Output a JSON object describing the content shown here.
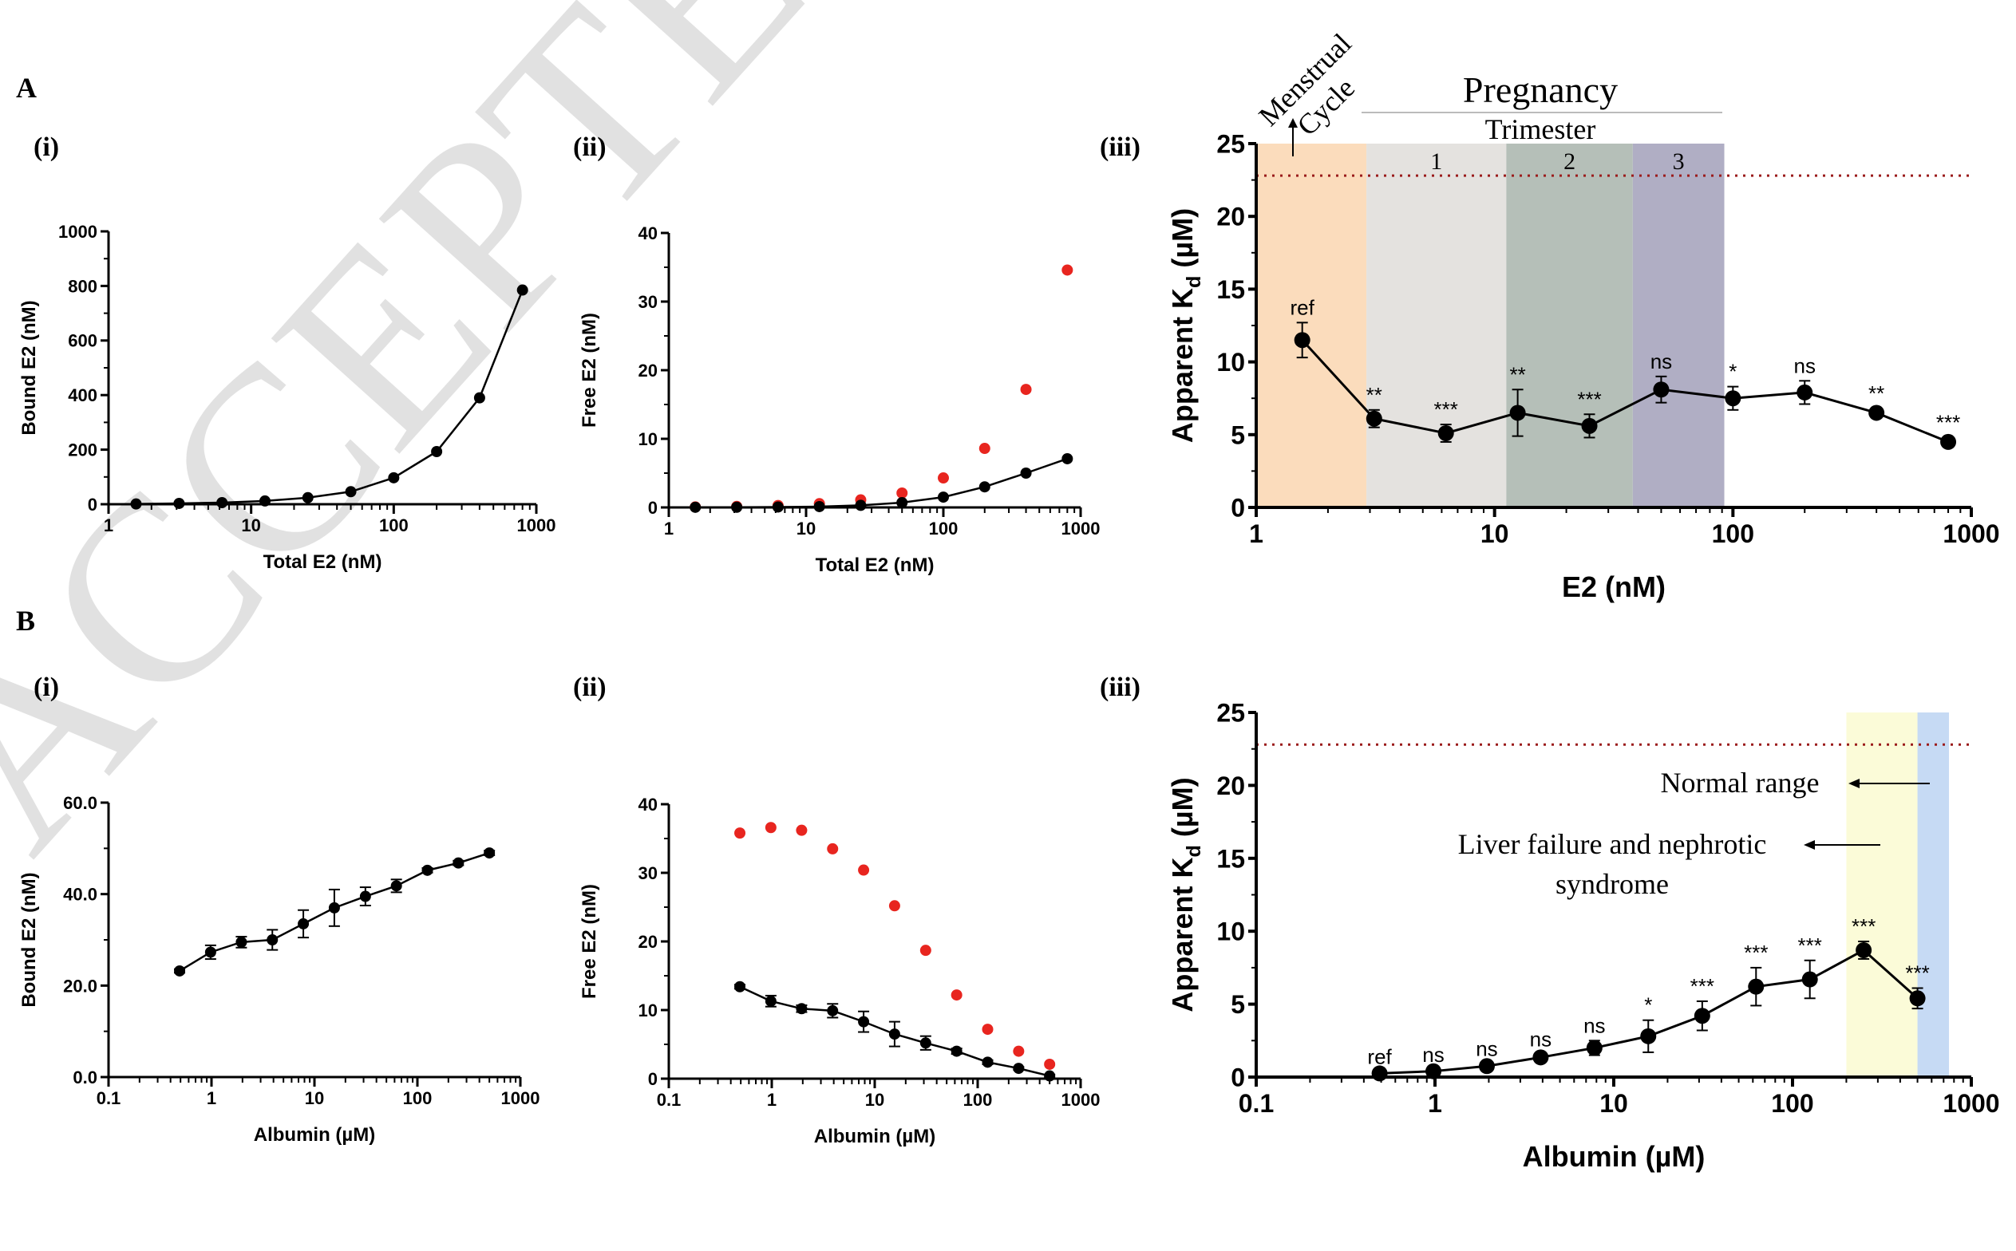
{
  "watermark": "ACCEPTED",
  "panel_labels": {
    "A": "A",
    "B": "B",
    "Ai": "(i)",
    "Aii": "(ii)",
    "Aiii": "(iii)",
    "Bi": "(i)",
    "Bii": "(ii)",
    "Biii": "(iii)"
  },
  "colors": {
    "black": "#000000",
    "red": "#e8251f",
    "ref_line": "#9b1c1c",
    "menstrual": "#fbdcbc",
    "trimester1": "#e4e2df",
    "trimester2": "#b5bfb8",
    "trimester3": "#b0aec4",
    "normal_range": "#fbfbd8",
    "liver_failure": "#c6daf4"
  },
  "chart_data": [
    {
      "id": "Ai",
      "type": "line",
      "xscale": "log",
      "xlim": [
        1,
        1000
      ],
      "ylim": [
        0,
        1000
      ],
      "xticks": [
        1,
        10,
        100,
        1000
      ],
      "xtick_labels": [
        "1",
        "10",
        "100",
        "1000"
      ],
      "yticks": [
        0,
        200,
        400,
        600,
        800,
        1000
      ],
      "ytick_labels": [
        "0",
        "200",
        "400",
        "600",
        "800",
        "1000"
      ],
      "xlabel": "Total E2 (nM)",
      "ylabel": "Bound E2 (nM)",
      "series": [
        {
          "name": "Bound E2",
          "color": "black",
          "marker": "circle",
          "line": true,
          "x": [
            1.56,
            3.125,
            6.25,
            12.5,
            25,
            50,
            100,
            200,
            400,
            800
          ],
          "y": [
            1,
            3,
            6,
            12,
            24,
            46,
            97,
            193,
            390,
            785
          ]
        }
      ]
    },
    {
      "id": "Aii",
      "type": "scatter",
      "xscale": "log",
      "xlim": [
        1,
        1000
      ],
      "ylim": [
        0,
        40
      ],
      "xticks": [
        1,
        10,
        100,
        1000
      ],
      "xtick_labels": [
        "1",
        "10",
        "100",
        "1000"
      ],
      "yticks": [
        0,
        10,
        20,
        30,
        40
      ],
      "ytick_labels": [
        "0",
        "10",
        "20",
        "30",
        "40"
      ],
      "xlabel": "Total E2 (nM)",
      "ylabel": "Free E2 (nM)",
      "series": [
        {
          "name": "Free E2 (red)",
          "color": "red",
          "marker": "circle",
          "line": false,
          "x": [
            1.56,
            3.125,
            6.25,
            12.5,
            25,
            50,
            100,
            200,
            400,
            800
          ],
          "y": [
            0.07,
            0.14,
            0.28,
            0.55,
            1.1,
            2.1,
            4.3,
            8.6,
            17.2,
            34.6
          ]
        },
        {
          "name": "Free E2 (black)",
          "color": "black",
          "marker": "circle",
          "line": true,
          "x": [
            1.56,
            3.125,
            6.25,
            12.5,
            25,
            50,
            100,
            200,
            400,
            800
          ],
          "y": [
            0.02,
            0.03,
            0.06,
            0.12,
            0.3,
            0.7,
            1.5,
            3.0,
            5.0,
            7.1
          ]
        }
      ]
    },
    {
      "id": "Aiii",
      "type": "line",
      "xscale": "log",
      "xlim": [
        1,
        1000
      ],
      "ylim": [
        0,
        25
      ],
      "xticks": [
        1,
        10,
        100,
        1000
      ],
      "xtick_labels": [
        "1",
        "10",
        "100",
        "1000"
      ],
      "yticks": [
        0,
        5,
        10,
        15,
        20,
        25
      ],
      "ytick_labels": [
        "0",
        "5",
        "10",
        "15",
        "20",
        "25"
      ],
      "xlabel": "E2 (nM)",
      "ylabel": "Apparent K",
      "ylabel_sub": "d",
      "ylabel_unit": " (µM)",
      "reference_line": 22.8,
      "header": {
        "pregnancy": "Pregnancy",
        "trimester": "Trimester",
        "menstrual_1": "Menstrual",
        "menstrual_2": "Cycle"
      },
      "regions": [
        {
          "from": 1,
          "to": 2.9,
          "color": "menstrual",
          "label": ""
        },
        {
          "from": 2.9,
          "to": 11.2,
          "color": "trimester1",
          "label": "1"
        },
        {
          "from": 11.2,
          "to": 38,
          "color": "trimester2",
          "label": "2"
        },
        {
          "from": 38,
          "to": 92,
          "color": "trimester3",
          "label": "3"
        }
      ],
      "series": [
        {
          "name": "Apparent Kd",
          "color": "black",
          "marker": "circle",
          "line": true,
          "x": [
            1.56,
            3.125,
            6.25,
            12.5,
            25,
            50,
            100,
            200,
            400,
            800
          ],
          "y": [
            11.5,
            6.1,
            5.1,
            6.5,
            5.6,
            8.1,
            7.5,
            7.9,
            6.5,
            4.5
          ],
          "err": [
            1.2,
            0.6,
            0.6,
            1.6,
            0.8,
            0.9,
            0.8,
            0.8,
            0.3,
            0.3
          ],
          "annotations": [
            "ref",
            "**",
            "***",
            "**",
            "***",
            "ns",
            "*",
            "ns",
            "**",
            "***"
          ]
        }
      ]
    },
    {
      "id": "Bi",
      "type": "line",
      "xscale": "log",
      "xlim": [
        0.1,
        1000
      ],
      "ylim": [
        0,
        60
      ],
      "xticks": [
        0.1,
        1,
        10,
        100,
        1000
      ],
      "xtick_labels": [
        "0.1",
        "1",
        "10",
        "100",
        "1000"
      ],
      "yticks": [
        0,
        20,
        40,
        60
      ],
      "ytick_labels": [
        "0.0",
        "20.0",
        "40.0",
        "60.0"
      ],
      "xlabel": "Albumin (µM)",
      "ylabel": "Bound E2 (nM)",
      "series": [
        {
          "name": "Bound E2",
          "color": "black",
          "marker": "circle",
          "line": true,
          "x": [
            0.49,
            0.98,
            1.95,
            3.9,
            7.8,
            15.6,
            31.25,
            62.5,
            125,
            250,
            500
          ],
          "y": [
            23.2,
            27.3,
            29.5,
            30.0,
            33.5,
            37.0,
            39.5,
            41.8,
            45.2,
            46.8,
            49.0
          ],
          "err": [
            0.4,
            1.5,
            1.2,
            2.2,
            3.0,
            4.0,
            2.0,
            1.4,
            0.5,
            0.5,
            0.5
          ]
        }
      ]
    },
    {
      "id": "Bii",
      "type": "scatter",
      "xscale": "log",
      "xlim": [
        0.1,
        1000
      ],
      "ylim": [
        0,
        40
      ],
      "xticks": [
        0.1,
        1,
        10,
        100,
        1000
      ],
      "xtick_labels": [
        "0.1",
        "1",
        "10",
        "100",
        "1000"
      ],
      "yticks": [
        0,
        10,
        20,
        30,
        40
      ],
      "ytick_labels": [
        "0",
        "10",
        "20",
        "30",
        "40"
      ],
      "xlabel": "Albumin (µM)",
      "ylabel": "Free E2 (nM)",
      "series": [
        {
          "name": "Free E2 (red)",
          "color": "red",
          "marker": "circle",
          "line": false,
          "x": [
            0.49,
            0.98,
            1.95,
            3.9,
            7.8,
            15.6,
            31.25,
            62.5,
            125,
            250,
            500
          ],
          "y": [
            35.8,
            36.6,
            36.2,
            33.5,
            30.4,
            25.2,
            18.7,
            12.2,
            7.2,
            4.0,
            2.1
          ]
        },
        {
          "name": "Free E2 (black)",
          "color": "black",
          "marker": "circle",
          "line": true,
          "x": [
            0.49,
            0.98,
            1.95,
            3.9,
            7.8,
            15.6,
            31.25,
            62.5,
            125,
            250,
            500
          ],
          "y": [
            13.4,
            11.3,
            10.2,
            9.9,
            8.3,
            6.5,
            5.2,
            4.0,
            2.4,
            1.5,
            0.4
          ],
          "err": [
            0.3,
            0.8,
            0.5,
            1.0,
            1.5,
            1.8,
            1.0,
            0.4,
            0.3,
            0.2,
            0.2
          ]
        }
      ]
    },
    {
      "id": "Biii",
      "type": "line",
      "xscale": "log",
      "xlim": [
        0.1,
        1000
      ],
      "ylim": [
        0,
        25
      ],
      "xticks": [
        0.1,
        1,
        10,
        100,
        1000
      ],
      "xtick_labels": [
        "0.1",
        "1",
        "10",
        "100",
        "1000"
      ],
      "yticks": [
        0,
        5,
        10,
        15,
        20,
        25
      ],
      "ytick_labels": [
        "0",
        "5",
        "10",
        "15",
        "20",
        "25"
      ],
      "xlabel": "Albumin (µM)",
      "ylabel": "Apparent K",
      "ylabel_sub": "d",
      "ylabel_unit": " (µM)",
      "reference_line": 22.8,
      "regions": [
        {
          "from": 200,
          "to": 500,
          "color": "normal_range",
          "label": ""
        },
        {
          "from": 500,
          "to": 750,
          "color": "liver_failure",
          "label": ""
        }
      ],
      "annotation_texts": {
        "normal": "Normal range",
        "liver_1": "Liver failure and nephrotic",
        "liver_2": "syndrome"
      },
      "series": [
        {
          "name": "Apparent Kd",
          "color": "black",
          "marker": "circle",
          "line": true,
          "x": [
            0.49,
            0.98,
            1.95,
            3.9,
            7.8,
            15.6,
            31.25,
            62.5,
            125,
            250,
            500
          ],
          "y": [
            0.25,
            0.4,
            0.75,
            1.35,
            2.0,
            2.8,
            4.2,
            6.2,
            6.7,
            8.7,
            5.4
          ],
          "err": [
            0.1,
            0.1,
            0.15,
            0.2,
            0.5,
            1.1,
            1.0,
            1.3,
            1.3,
            0.6,
            0.7
          ],
          "annotations": [
            "ref",
            "ns",
            "ns",
            "ns",
            "ns",
            "*",
            "***",
            "***",
            "***",
            "***",
            "***"
          ]
        }
      ]
    }
  ]
}
